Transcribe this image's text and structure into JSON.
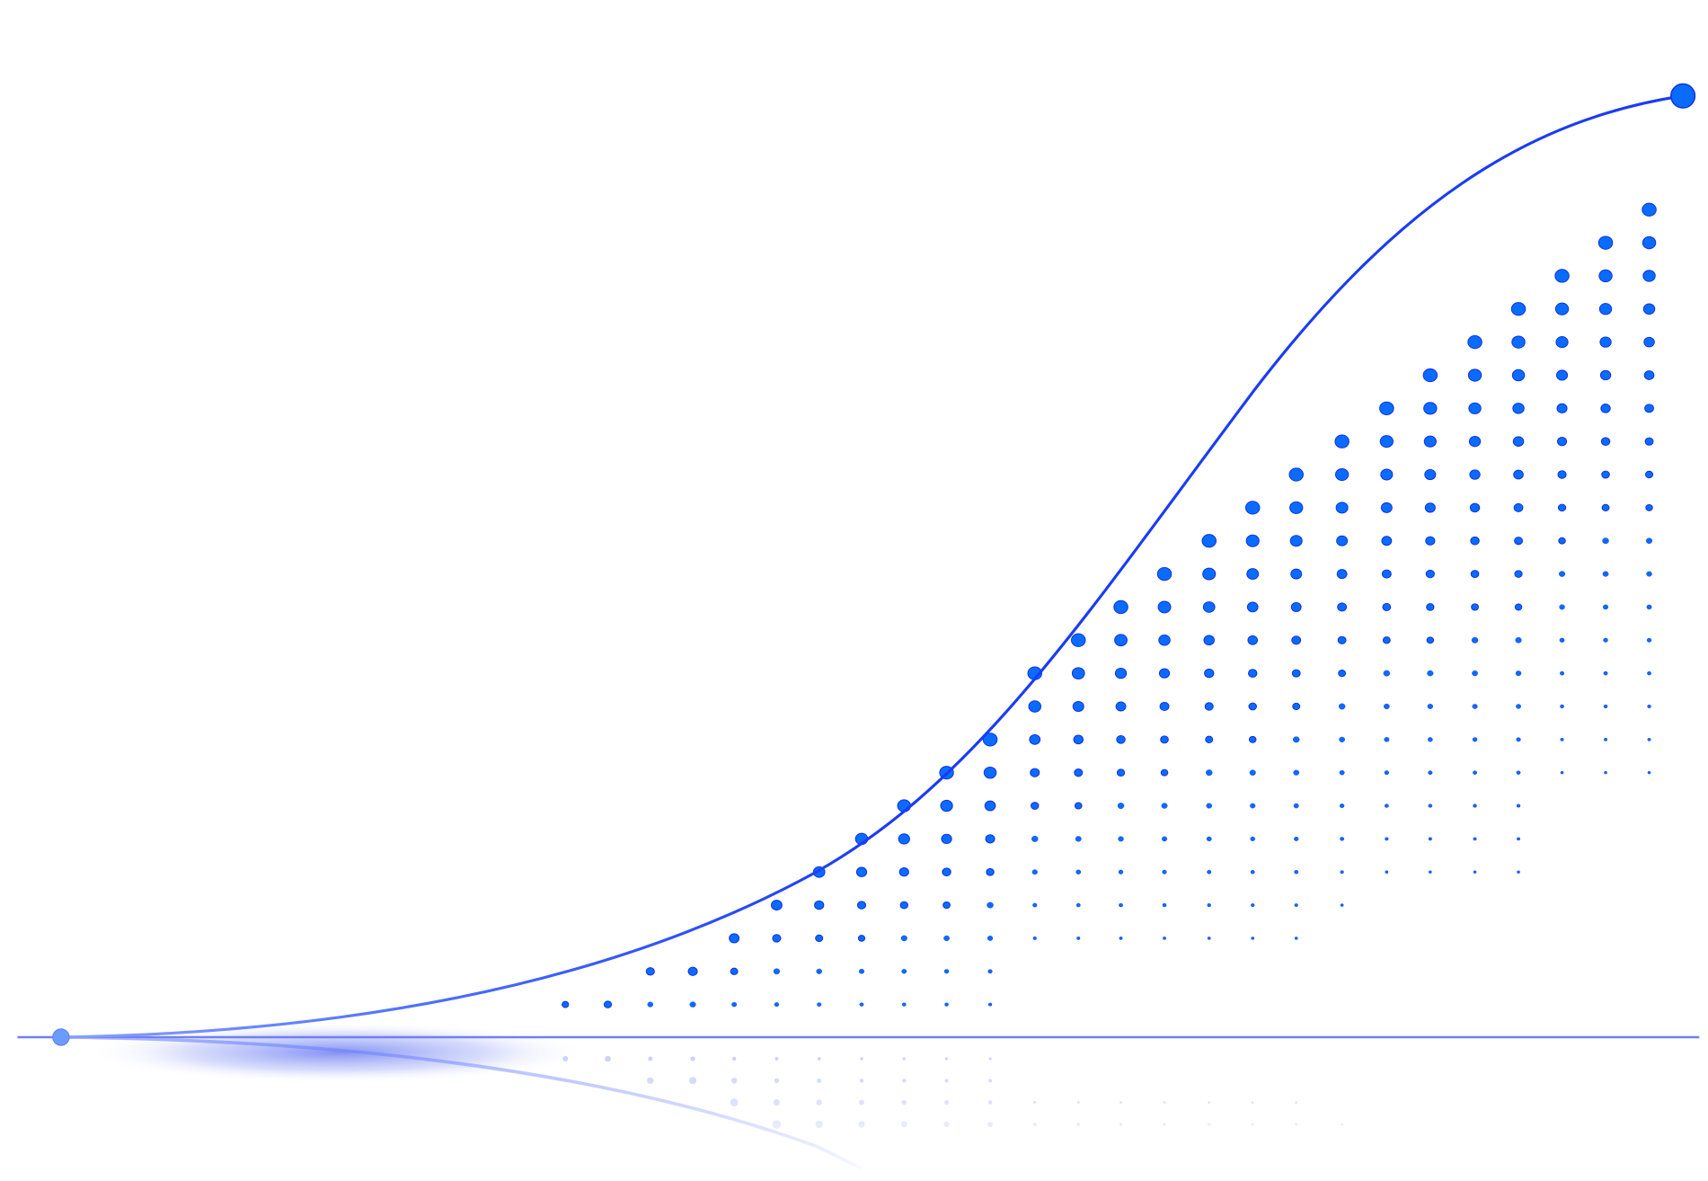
{
  "illustration": {
    "kind": "growth-curve-with-dot-grid",
    "colors": {
      "curve": "#1a3cf5",
      "dot_fill": "#0a6cff",
      "dot_stroke": "#1030e0",
      "baseline": "#7080f0",
      "start_dot": "#6a9cff",
      "glow": "#5a6ef0",
      "background": "#ffffff"
    }
  }
}
